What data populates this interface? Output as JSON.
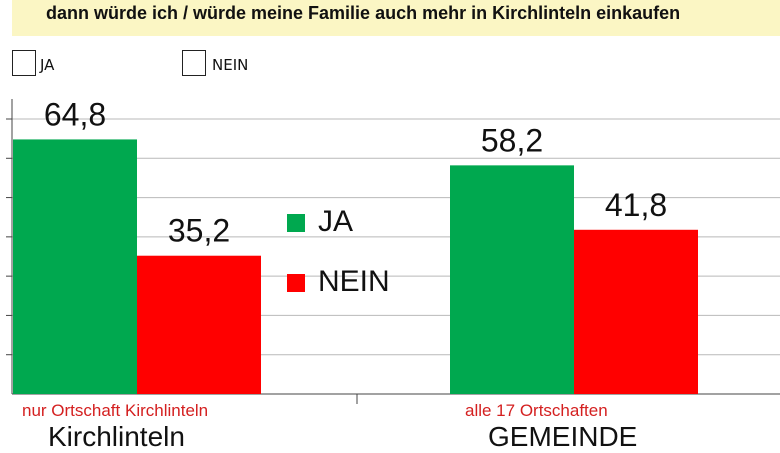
{
  "question": "dann würde ich / würde meine Familie auch mehr in Kirchlinteln einkaufen",
  "form": {
    "options": [
      {
        "label": "JA"
      },
      {
        "label": "NEIN"
      }
    ]
  },
  "colors": {
    "ja": "#00a84f",
    "nein": "#ff0000",
    "grid": "#b9b9b9",
    "banner": "#fbf6c4",
    "category": "#d42020"
  },
  "chart_data": {
    "type": "bar",
    "categories": [
      "nur Ortschaft Kirchlinteln",
      "alle 17 Ortschaften"
    ],
    "group_titles": [
      "Kirchlinteln",
      "GEMEINDE"
    ],
    "series": [
      {
        "name": "JA",
        "values": [
          64.8,
          58.2
        ],
        "labels": [
          "64,8",
          "58,2"
        ]
      },
      {
        "name": "NEIN",
        "values": [
          35.2,
          41.8
        ],
        "labels": [
          "35,2",
          "41,8"
        ]
      }
    ],
    "legend": [
      {
        "label": "JA",
        "color": "#00a84f"
      },
      {
        "label": "NEIN",
        "color": "#ff0000"
      }
    ],
    "legend_position": "center",
    "ylim": [
      0,
      70
    ],
    "grid": true
  }
}
